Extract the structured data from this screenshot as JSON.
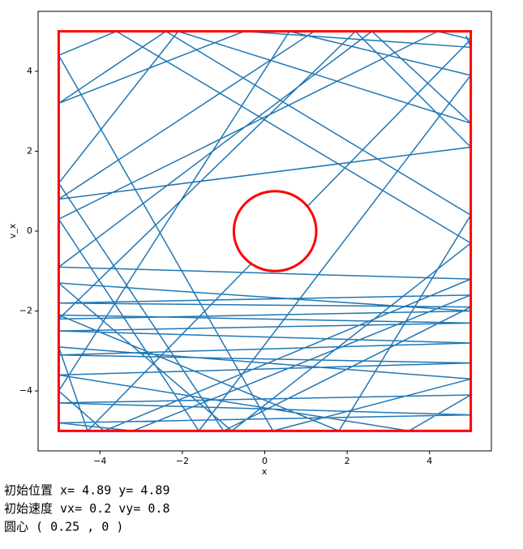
{
  "chart_data": {
    "type": "line",
    "xlabel": "x",
    "ylabel": "v_x",
    "xlim": [
      -5.5,
      5.5
    ],
    "ylim": [
      -5.5,
      5.5
    ],
    "xticks": [
      {
        "value": -4,
        "label": "−4"
      },
      {
        "value": -2,
        "label": "−2"
      },
      0,
      2,
      4
    ],
    "yticks": [
      {
        "value": -4,
        "label": "−4"
      },
      {
        "value": -2,
        "label": "−2"
      },
      0,
      2,
      4
    ],
    "box": {
      "xmin": -5,
      "xmax": 5,
      "ymin": -5,
      "ymax": 5,
      "color": "#ff0000"
    },
    "circle": {
      "cx": 0.25,
      "cy": 0,
      "r": 1,
      "color": "#ff0000"
    },
    "series": [
      {
        "color": "#1f77b4",
        "x": [
          4.89,
          5,
          -0.5,
          -5,
          -2.4,
          5,
          1.8,
          -5,
          5,
          -5,
          5,
          -5,
          5,
          -5,
          3.5,
          5,
          -5,
          5,
          -5,
          -3.2,
          5,
          -5,
          5,
          -1,
          -5,
          -2.1,
          5,
          2.6,
          -5,
          5,
          -3.9,
          -5,
          0.6,
          5,
          -1.6,
          -5,
          4.2,
          5,
          -4.3,
          -5,
          5,
          0.2,
          -5,
          -3.6,
          5,
          -0.8,
          -5,
          5,
          -5,
          2.2,
          5,
          -5,
          1.2
        ],
        "y": [
          4.89,
          4.6,
          5,
          3.2,
          5,
          0.4,
          -5,
          -2.1,
          -2.3,
          -2.5,
          -2.8,
          -3.1,
          -3.3,
          -3.6,
          -5,
          -4.1,
          -4.3,
          -4.6,
          -4.8,
          -5,
          -1.6,
          -1.8,
          -1.9,
          -5,
          1.2,
          5,
          2.7,
          5,
          -0.9,
          -1.2,
          -5,
          -4,
          5,
          3.9,
          -5,
          0.3,
          5,
          4.8,
          -5,
          -2.9,
          -3.7,
          -5,
          4.4,
          5,
          -0.3,
          -5,
          -1.3,
          -2,
          -2.2,
          5,
          2.1,
          0.8,
          5
        ]
      }
    ],
    "annotations": [
      "初始位置 x= 4.89  y= 4.89",
      "初始速度 vx= 0.2 vy= 0.8",
      "圆心 ( 0.25 , 0 )"
    ]
  }
}
